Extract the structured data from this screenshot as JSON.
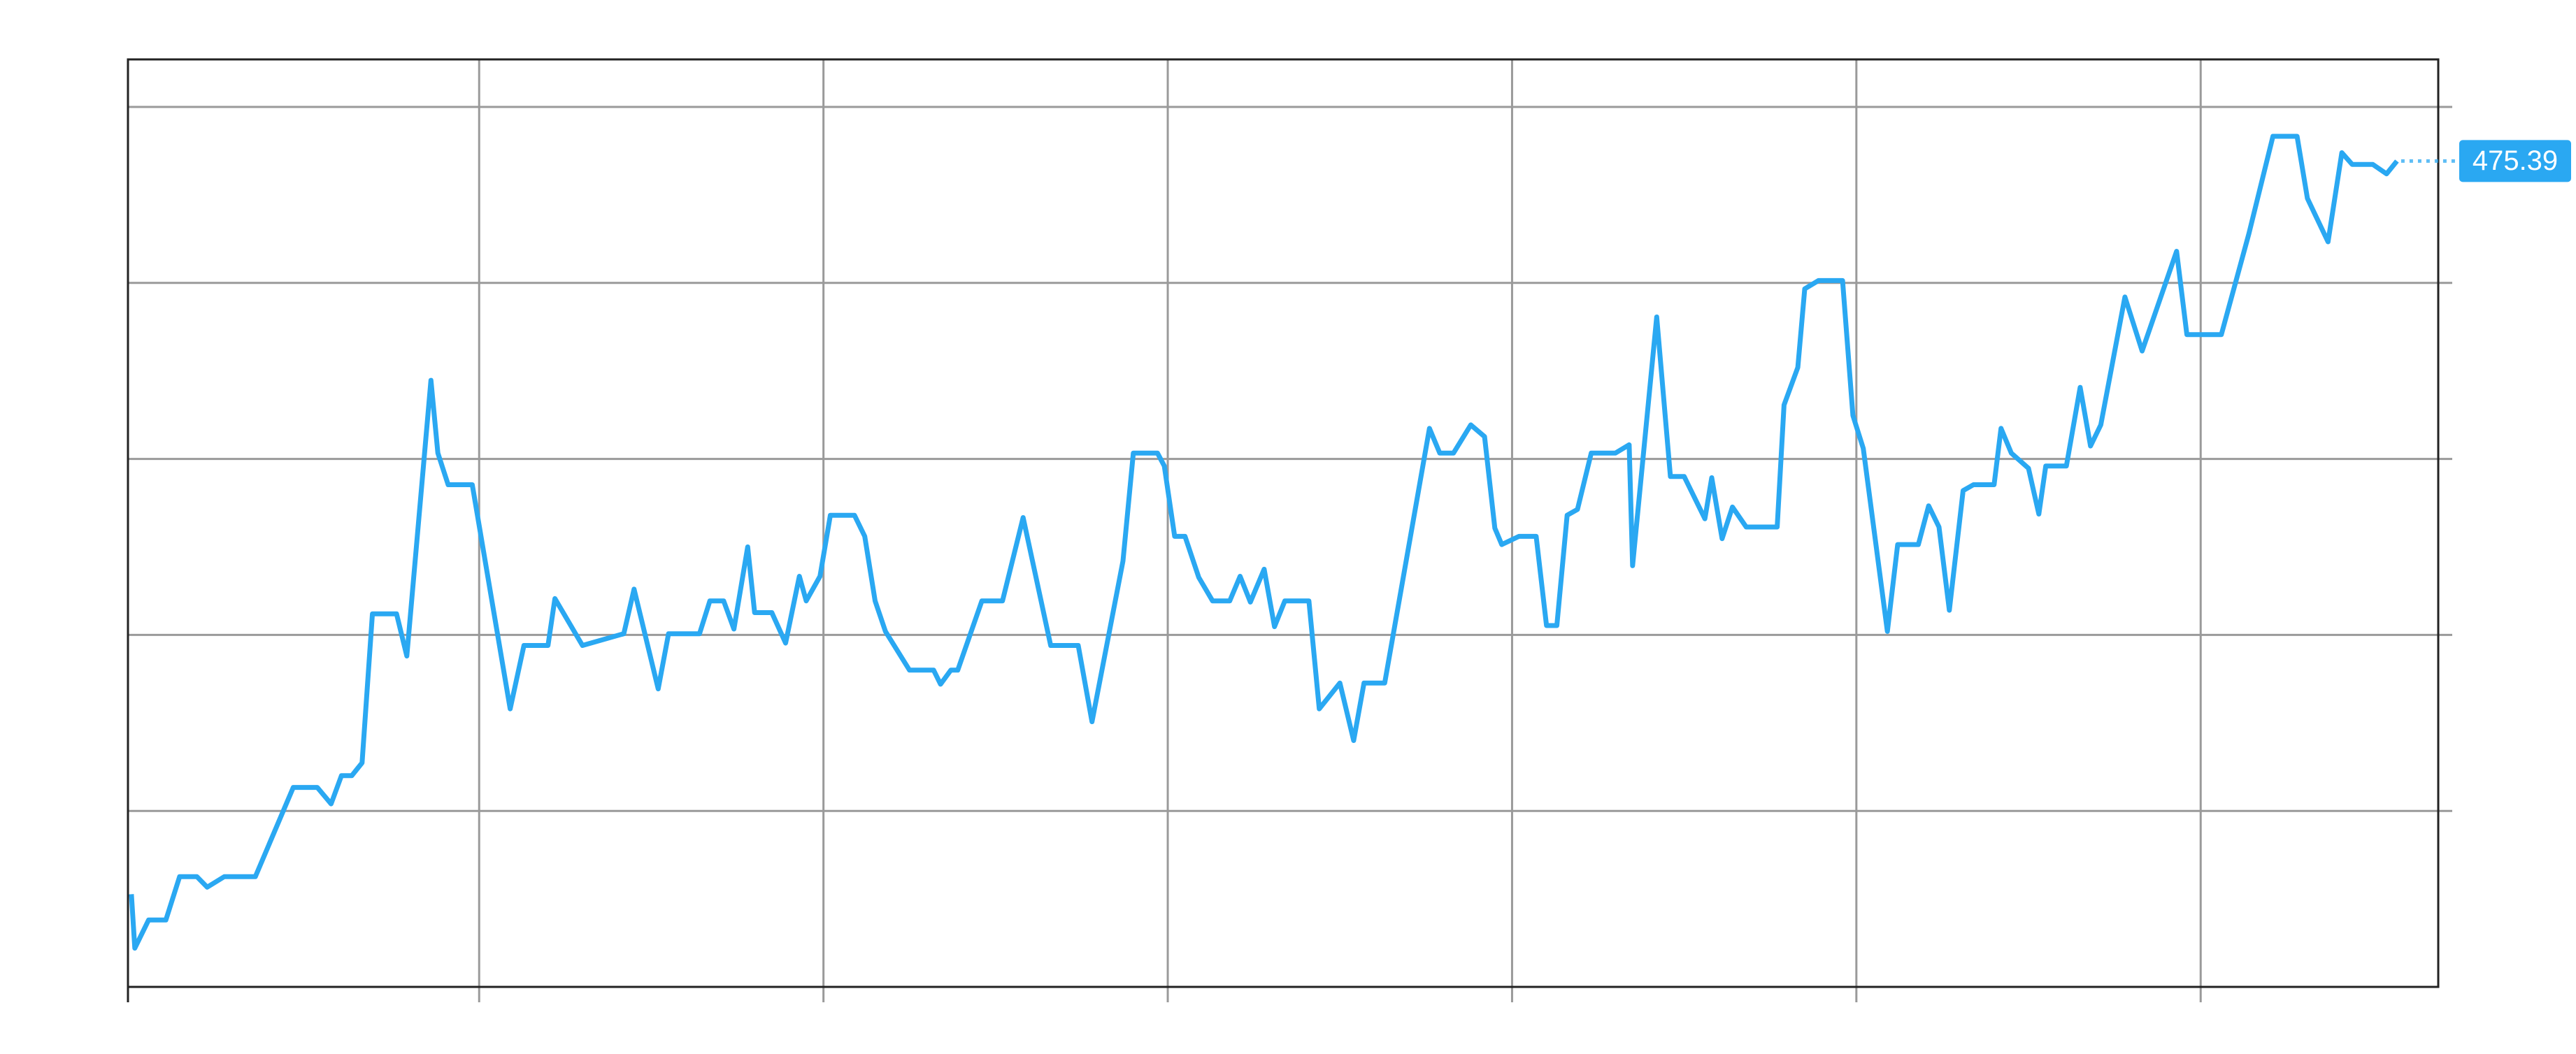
{
  "chart_data": {
    "type": "line",
    "x": [
      -0.1,
      0.0,
      0.4,
      0.9,
      1.3,
      1.8,
      2.1,
      2.6,
      3.5,
      4.6,
      5.3,
      5.7,
      6.0,
      6.3,
      6.6,
      6.9,
      7.6,
      7.9,
      8.6,
      8.8,
      9.1,
      9.8,
      10.9,
      11.3,
      12.0,
      12.2,
      13.0,
      14.2,
      14.5,
      15.2,
      15.5,
      16.4,
      16.7,
      17.1,
      17.4,
      17.8,
      18.0,
      18.5,
      18.9,
      19.3,
      19.5,
      19.9,
      20.2,
      20.9,
      21.2,
      21.5,
      21.8,
      22.5,
      23.2,
      23.4,
      23.7,
      23.9,
      24.6,
      25.2,
      25.8,
      26.6,
      27.4,
      27.8,
      28.7,
      29.0,
      29.7,
      29.9,
      30.2,
      30.5,
      30.9,
      31.3,
      31.8,
      32.1,
      32.4,
      32.8,
      33.1,
      33.4,
      34.1,
      34.4,
      35.0,
      35.4,
      35.7,
      36.3,
      37.6,
      37.9,
      38.3,
      38.8,
      39.2,
      39.5,
      39.7,
      40.2,
      40.7,
      41.0,
      41.3,
      41.6,
      41.9,
      42.3,
      43.0,
      43.4,
      43.5,
      44.2,
      44.6,
      45.0,
      45.6,
      45.8,
      46.1,
      46.4,
      46.8,
      47.7,
      47.9,
      48.3,
      48.5,
      48.9,
      49.6,
      49.9,
      50.2,
      50.9,
      51.2,
      51.8,
      52.1,
      52.4,
      52.7,
      53.1,
      53.4,
      54.0,
      54.2,
      54.5,
      55.0,
      55.3,
      55.5,
      56.1,
      56.5,
      56.8,
      57.1,
      57.8,
      58.3,
      58.9,
      59.3,
      59.6,
      60.6,
      61.4,
      62.1,
      62.8,
      63.1,
      63.7,
      64.1,
      64.4,
      65.0,
      65.4,
      65.7
    ],
    "series": [
      {
        "color": "#2aa8f2",
        "values": [
          412.9,
          408.3,
          410.7,
          410.7,
          414.4,
          414.4,
          413.5,
          414.4,
          414.4,
          422.0,
          422.0,
          420.6,
          423.0,
          423.0,
          424.1,
          436.8,
          436.8,
          433.2,
          456.7,
          450.5,
          447.8,
          447.8,
          428.7,
          434.1,
          434.1,
          438.1,
          434.1,
          435.1,
          438.9,
          430.4,
          435.1,
          435.1,
          437.9,
          437.9,
          435.5,
          442.5,
          436.9,
          436.9,
          434.3,
          440.0,
          437.9,
          440.0,
          445.2,
          445.2,
          443.4,
          437.9,
          435.3,
          432.0,
          432.0,
          430.8,
          432.0,
          432.0,
          437.9,
          437.9,
          445.0,
          434.1,
          434.1,
          427.6,
          441.3,
          450.5,
          450.5,
          449.4,
          443.4,
          443.4,
          439.9,
          437.9,
          437.9,
          440.0,
          437.8,
          440.6,
          435.7,
          437.9,
          437.9,
          428.7,
          430.9,
          426.0,
          430.9,
          430.9,
          452.6,
          450.5,
          450.5,
          452.9,
          451.9,
          444.1,
          442.7,
          443.4,
          443.4,
          435.8,
          435.8,
          445.2,
          445.7,
          450.5,
          450.5,
          451.2,
          440.9,
          462.1,
          448.5,
          448.5,
          444.9,
          448.4,
          443.2,
          445.9,
          444.2,
          444.2,
          454.6,
          457.8,
          464.5,
          465.2,
          465.2,
          453.7,
          450.9,
          435.3,
          442.7,
          442.7,
          446.0,
          444.2,
          437.1,
          447.3,
          447.8,
          447.8,
          452.6,
          450.5,
          449.2,
          445.3,
          449.4,
          449.4,
          456.1,
          451.1,
          452.9,
          463.8,
          459.2,
          464.3,
          467.7,
          460.6,
          460.6,
          469.2,
          477.5,
          477.5,
          472.2,
          468.5,
          476.1,
          475.1,
          475.1,
          474.3,
          475.39
        ]
      }
    ],
    "xlim": [
      -0.2,
      66.9
    ],
    "xticks": [
      10,
      20,
      30,
      40,
      50,
      60
    ],
    "ylim": [
      405.0,
      484.05
    ],
    "yticks": [
      420,
      435,
      450,
      465,
      480
    ],
    "grid": true
  }
}
